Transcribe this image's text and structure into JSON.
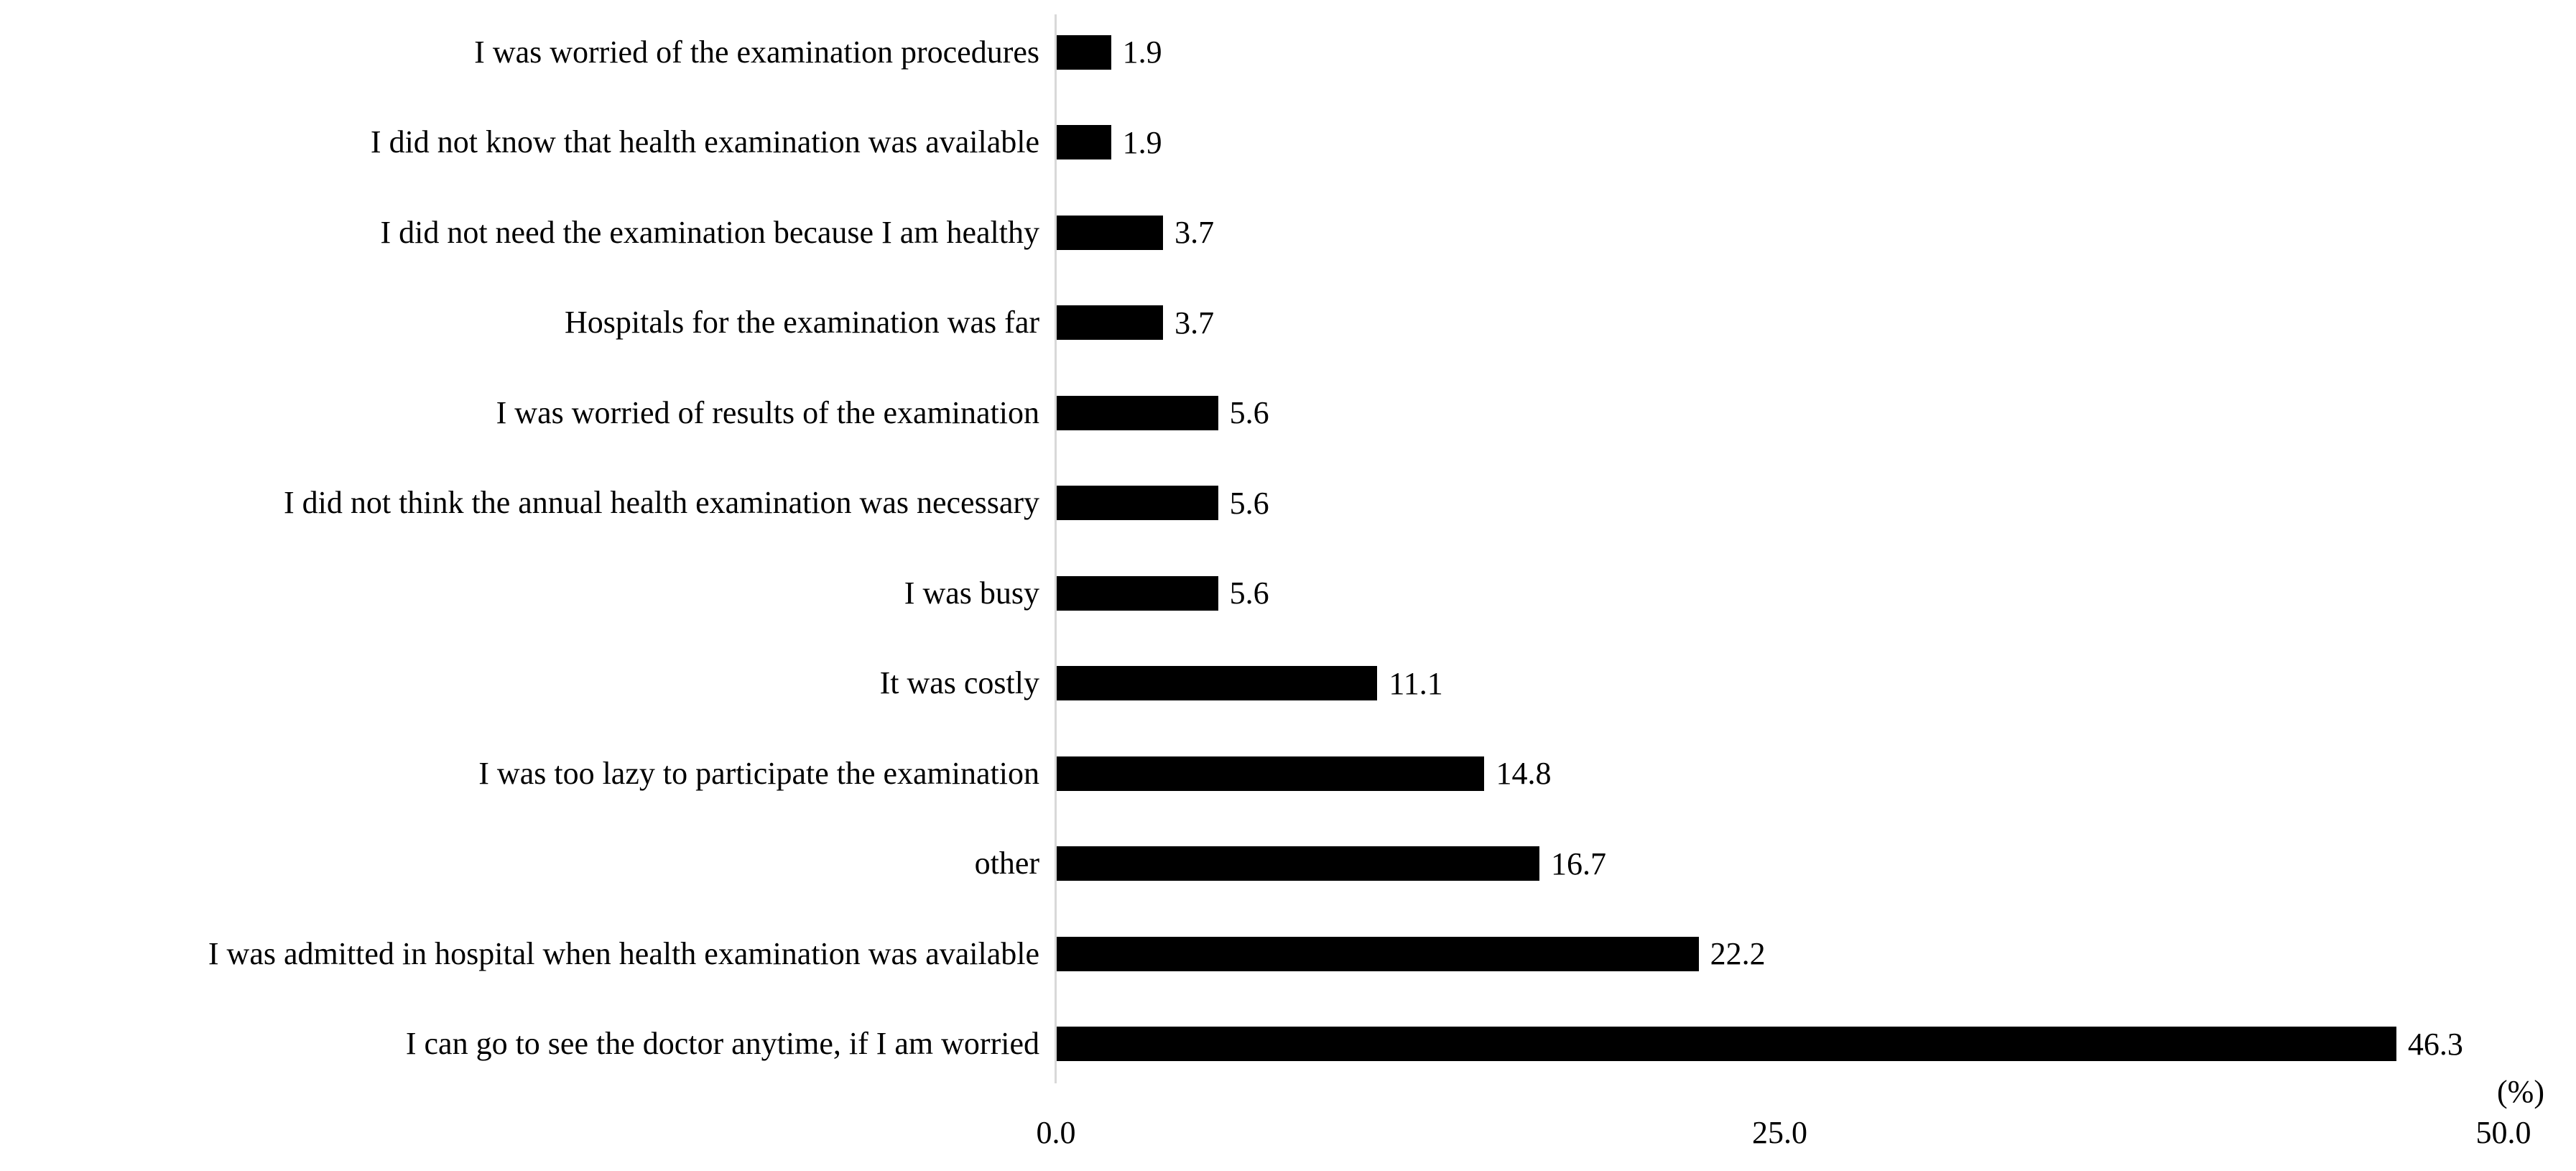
{
  "chart_data": {
    "type": "bar",
    "orientation": "horizontal",
    "title": "",
    "xlabel": "(%)",
    "ylabel": "",
    "categories": [
      "I was worried of the examination procedures",
      "I did not know that health examination was available",
      "I did not need the examination because I am healthy",
      "Hospitals for the examination was far",
      "I was worried of results of the examination",
      "I did not think the annual health examination was necessary",
      "I was busy",
      "It was costly",
      "I was too lazy to participate the examination",
      "other",
      "I was admitted in hospital when health examination was available",
      "I can go to see the doctor anytime, if I am worried"
    ],
    "values": [
      1.9,
      1.9,
      3.7,
      3.7,
      5.6,
      5.6,
      5.6,
      11.1,
      14.8,
      16.7,
      22.2,
      46.3
    ],
    "value_labels": [
      "1.9",
      "1.9",
      "3.7",
      "3.7",
      "5.6",
      "5.6",
      "5.6",
      "11.1",
      "14.8",
      "16.7",
      "22.2",
      "46.3"
    ],
    "xlim": [
      0,
      50
    ],
    "x_ticks": [
      "0.0",
      "25.0",
      "50.0"
    ],
    "x_tick_values": [
      0,
      25,
      50
    ],
    "grid": false,
    "legend": false,
    "bar_color": "#000000",
    "axis_line_color": "#d9d9d9",
    "text_color": "#000000",
    "background_color": "#ffffff"
  }
}
